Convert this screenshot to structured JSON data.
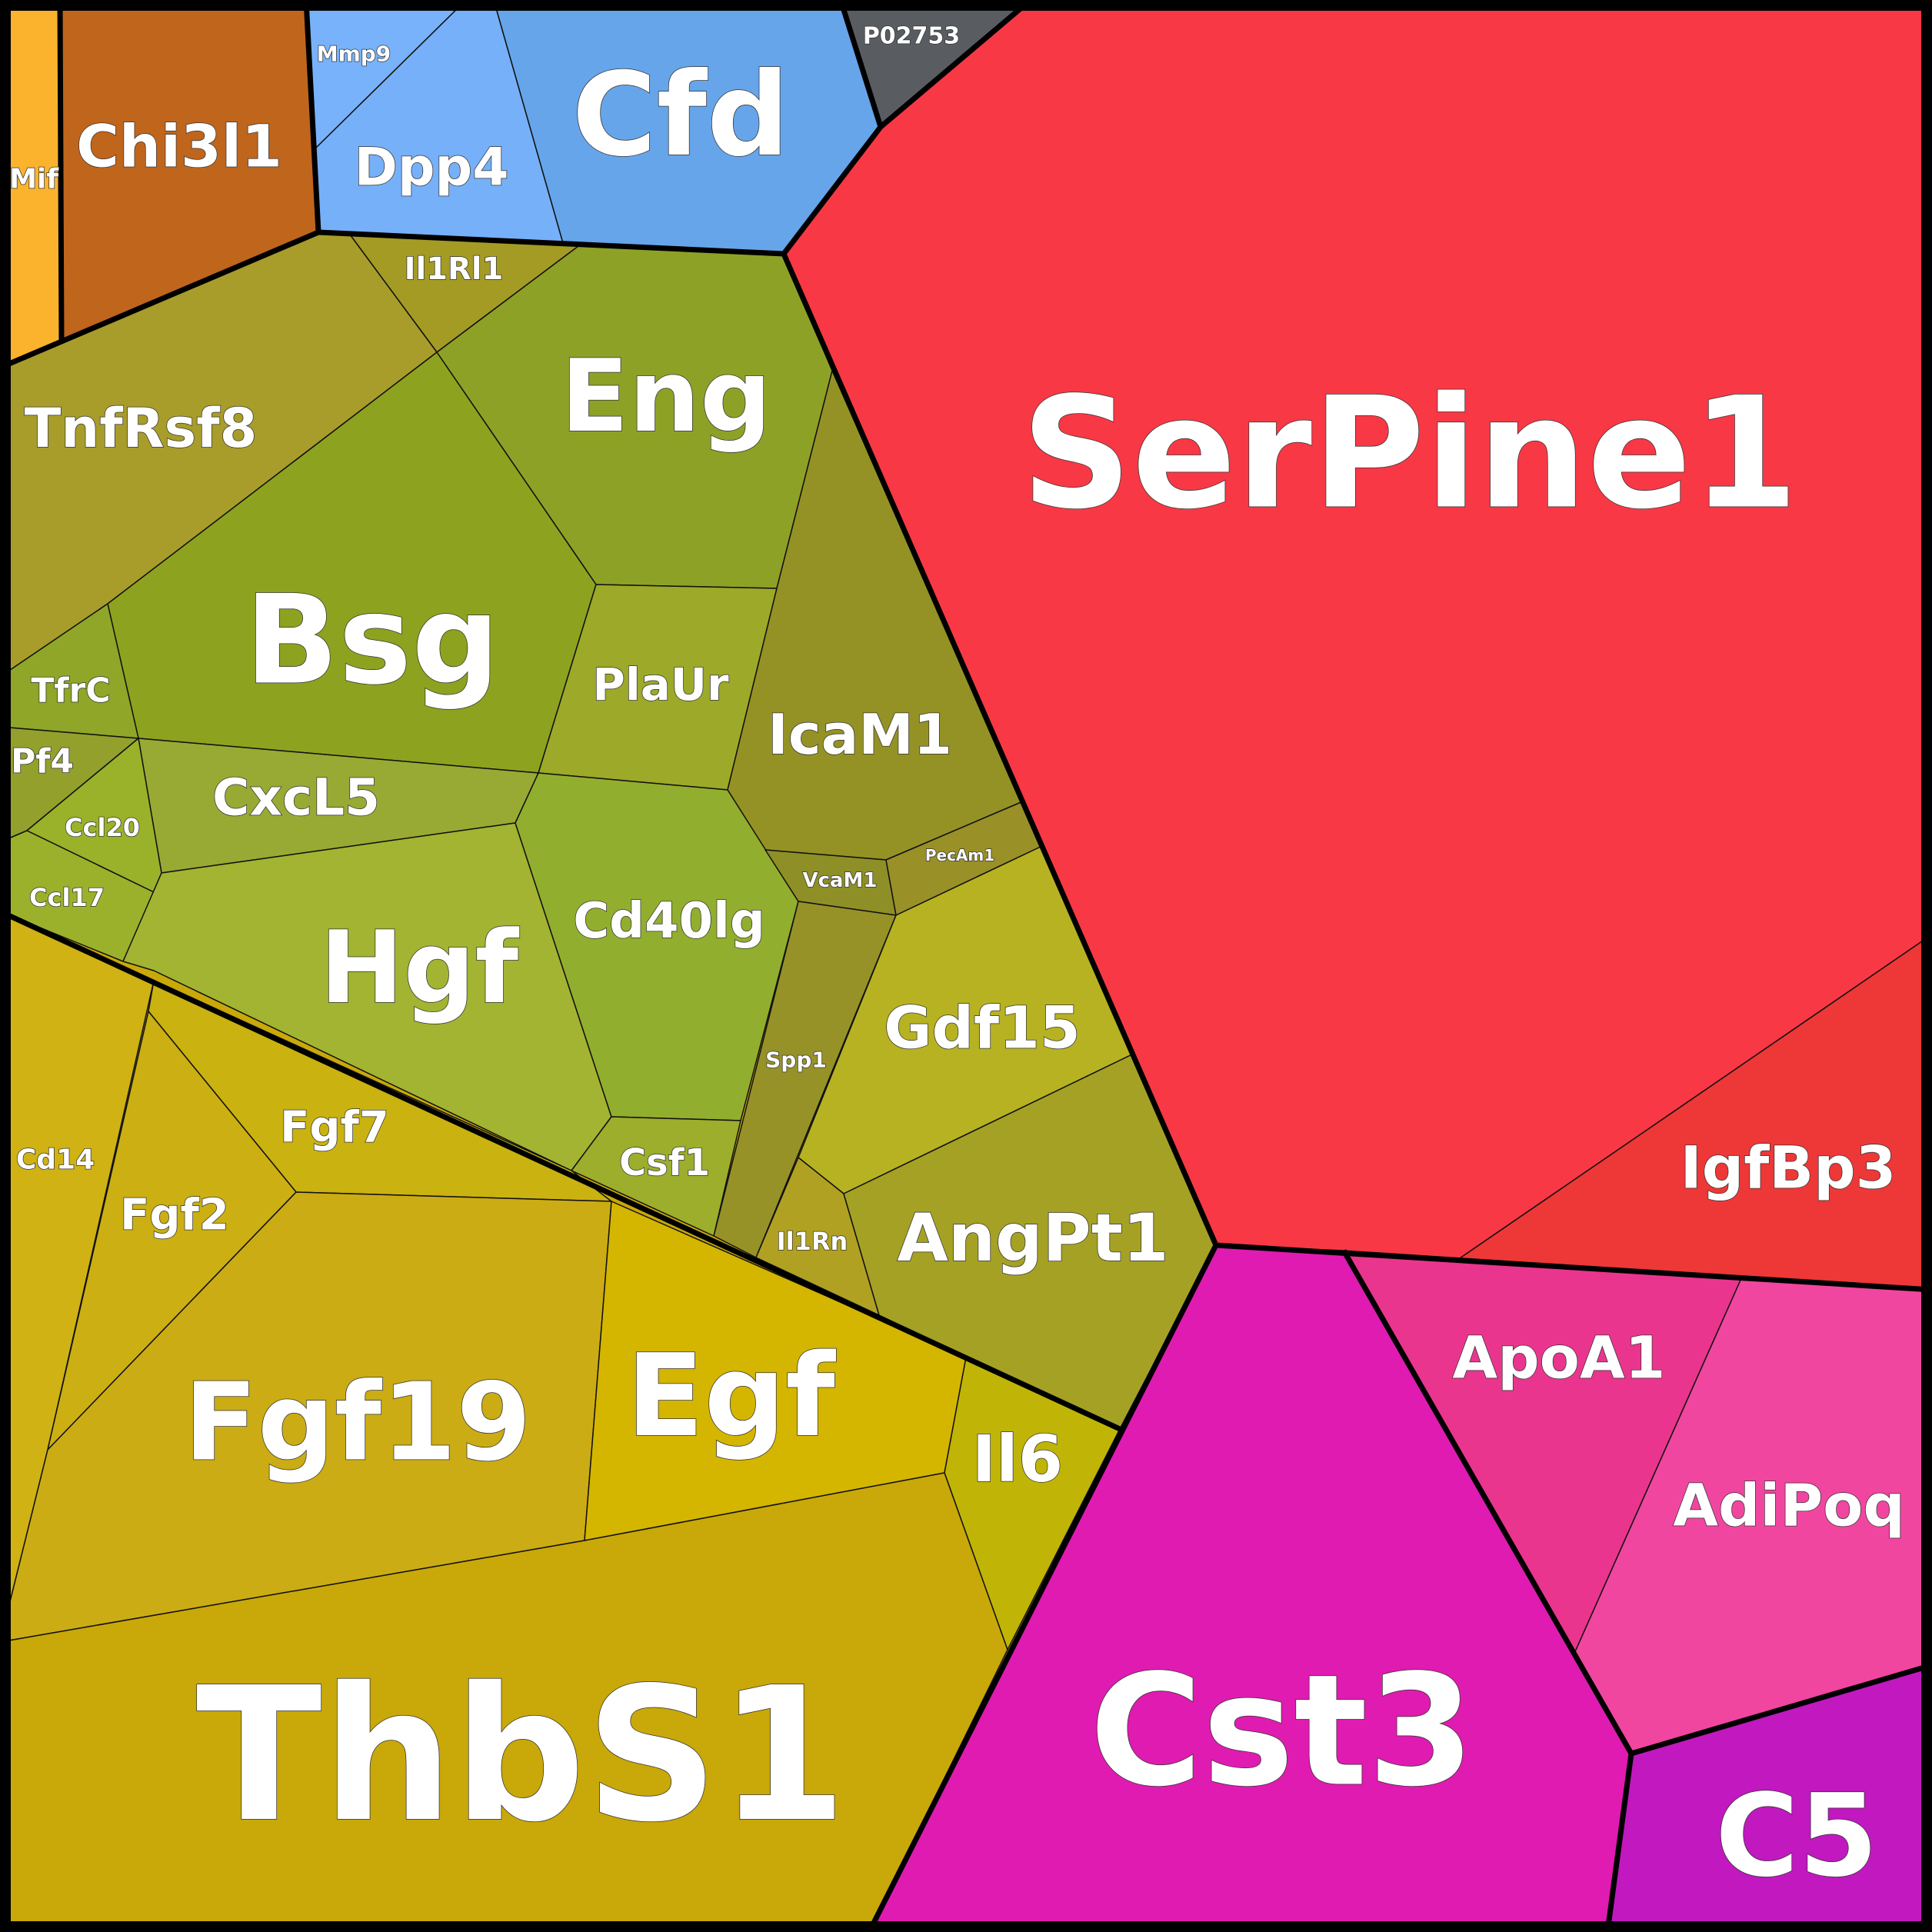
{
  "chart_data": {
    "type": "voronoi-treemap",
    "groups": [
      {
        "id": "grp-orange",
        "color": "#fbb32d",
        "cells": [
          "Mif"
        ]
      },
      {
        "id": "grp-brown",
        "color": "#c0651c",
        "cells": [
          "Chi3l1"
        ]
      },
      {
        "id": "grp-blue",
        "color": "#66a5ea",
        "cells": [
          "Mmp9",
          "Dpp4",
          "Cfd"
        ]
      },
      {
        "id": "grp-grey",
        "color": "#595d61",
        "cells": [
          "P02753"
        ]
      },
      {
        "id": "grp-red",
        "color": "#f93845",
        "cells": [
          "SerPine1",
          "IgfBp3"
        ]
      },
      {
        "id": "grp-olive",
        "color": "#8ea323",
        "cells": [
          "Il1Rl1",
          "TnfRsf8",
          "Eng",
          "Bsg",
          "PlaUr",
          "IcaM1",
          "TfrC",
          "Pf4",
          "CxcL5",
          "Ccl20",
          "Ccl17",
          "Hgf",
          "Cd40lg",
          "VcaM1",
          "PecAm1",
          "Spp1",
          "Gdf15",
          "Csf1",
          "Il1Rn",
          "AngPt1"
        ]
      },
      {
        "id": "grp-gold",
        "color": "#c9a810",
        "cells": [
          "Cd14",
          "Fgf7",
          "Fgf2",
          "Fgf19",
          "Egf",
          "Il6",
          "ThbS1"
        ]
      },
      {
        "id": "grp-magenta",
        "color": "#e01bb1",
        "cells": [
          "Cst3",
          "ApoA1",
          "AdiPoq",
          "C5"
        ]
      }
    ],
    "cells": [
      {
        "label": "Mif",
        "color": "#fbb32d"
      },
      {
        "label": "Chi3l1",
        "color": "#c0651c"
      },
      {
        "label": "Mmp9",
        "color": "#78b2fa"
      },
      {
        "label": "Dpp4",
        "color": "#76b0f8"
      },
      {
        "label": "Cfd",
        "color": "#66a5ea"
      },
      {
        "label": "P02753",
        "color": "#595d61"
      },
      {
        "label": "SerPine1",
        "color": "#f93845"
      },
      {
        "label": "IgfBp3",
        "color": "#ee3737"
      },
      {
        "label": "Il1Rl1",
        "color": "#a39b24"
      },
      {
        "label": "TnfRsf8",
        "color": "#a89d2a"
      },
      {
        "label": "Eng",
        "color": "#8ea127"
      },
      {
        "label": "Bsg",
        "color": "#8da320"
      },
      {
        "label": "PlaUr",
        "color": "#9da928"
      },
      {
        "label": "IcaM1",
        "color": "#949224"
      },
      {
        "label": "TfrC",
        "color": "#8fa628"
      },
      {
        "label": "Pf4",
        "color": "#93a02c"
      },
      {
        "label": "CxcL5",
        "color": "#98aa34"
      },
      {
        "label": "Ccl20",
        "color": "#9ab12a"
      },
      {
        "label": "Ccl17",
        "color": "#9bb12c"
      },
      {
        "label": "Hgf",
        "color": "#a2b431"
      },
      {
        "label": "Cd40lg",
        "color": "#92ae2e"
      },
      {
        "label": "VcaM1",
        "color": "#8e8f26"
      },
      {
        "label": "PecAm1",
        "color": "#999028"
      },
      {
        "label": "Spp1",
        "color": "#979228"
      },
      {
        "label": "Gdf15",
        "color": "#b7b221"
      },
      {
        "label": "Csf1",
        "color": "#9cae2c"
      },
      {
        "label": "Il1Rn",
        "color": "#b0a123"
      },
      {
        "label": "AngPt1",
        "color": "#a5a124"
      },
      {
        "label": "Cd14",
        "color": "#d0b214"
      },
      {
        "label": "Fgf7",
        "color": "#cab210"
      },
      {
        "label": "Fgf2",
        "color": "#ccaf12"
      },
      {
        "label": "Fgf19",
        "color": "#cbac14"
      },
      {
        "label": "Egf",
        "color": "#d4b500"
      },
      {
        "label": "Il6",
        "color": "#c0b506"
      },
      {
        "label": "ThbS1",
        "color": "#c9a809"
      },
      {
        "label": "Cst3",
        "color": "#e01bb1"
      },
      {
        "label": "ApoA1",
        "color": "#ea358e"
      },
      {
        "label": "AdiPoq",
        "color": "#f046a0"
      },
      {
        "label": "C5",
        "color": "#c118c0"
      }
    ]
  }
}
